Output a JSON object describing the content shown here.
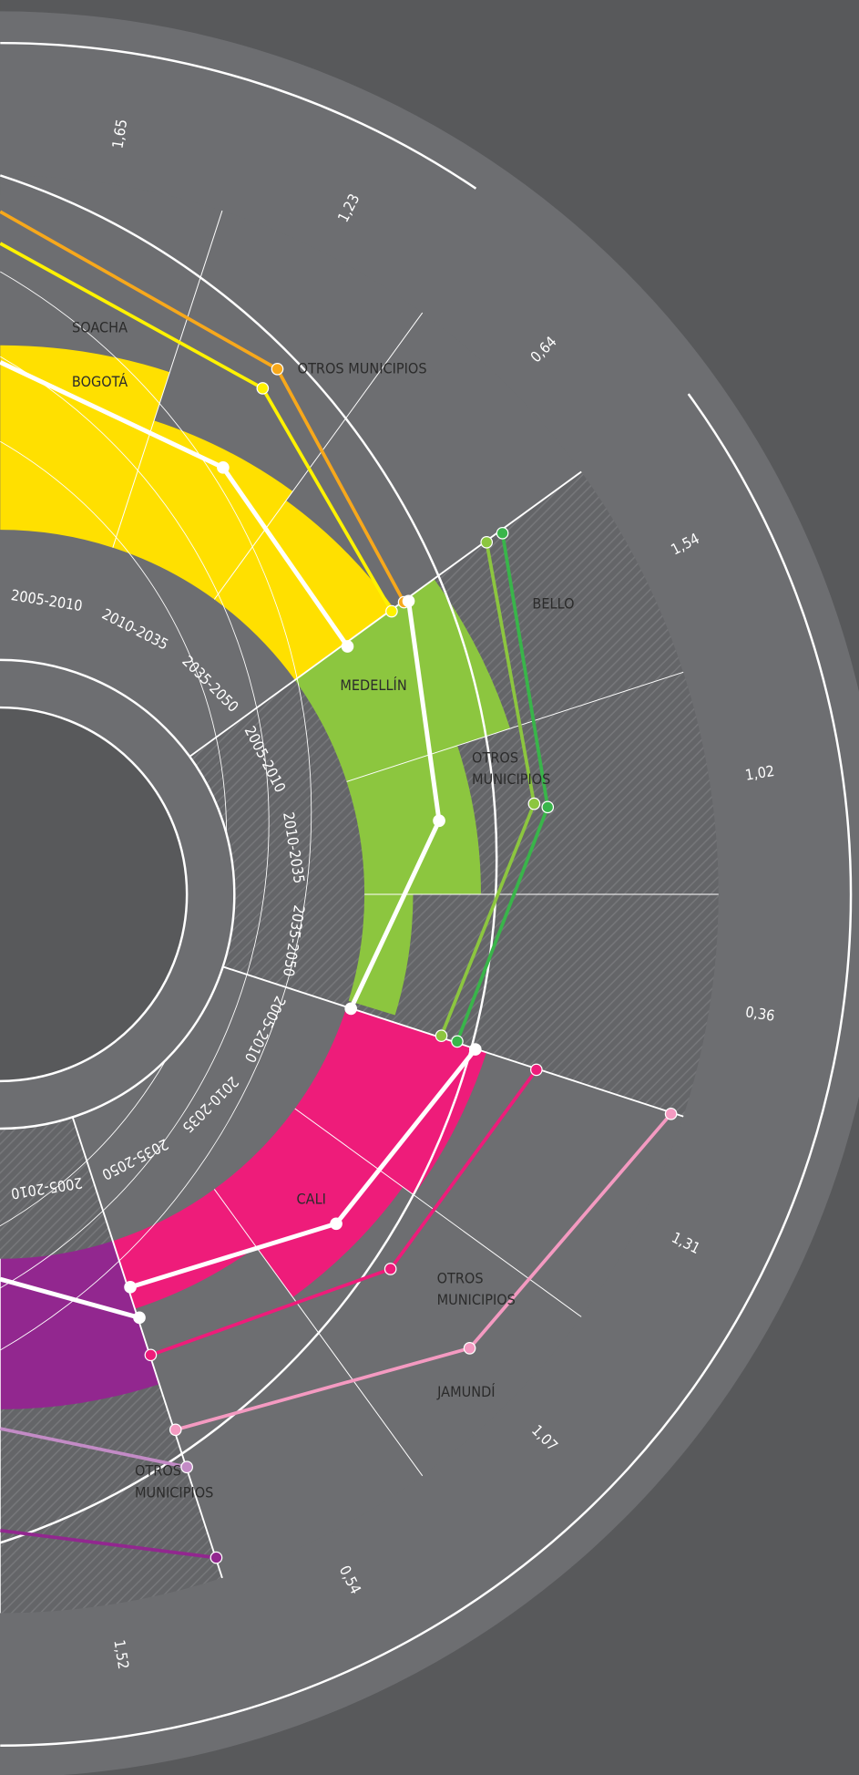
{
  "rate_labels": [
    "1,65",
    "1,23",
    "0,64",
    "1,54",
    "1,02",
    "0,36",
    "1,31",
    "1,07",
    "0,54",
    "1,52"
  ],
  "period_labels": [
    "2005-2010",
    "2010-2035",
    "2035-2050",
    "2005-2010",
    "2010-2035",
    "2035-2050",
    "2005-2010",
    "2010-2035",
    "2035-2050",
    "2005-2010"
  ],
  "place_labels": [
    [
      "SOACHA"
    ],
    [
      "BOGOTÁ"
    ],
    [
      "OTROS MUNICIPIOS"
    ],
    [
      "BELLO"
    ],
    [
      "MEDELLÍN"
    ],
    [
      "OTROS",
      "MUNICIPIOS"
    ],
    [
      "CALI"
    ],
    [
      "OTROS",
      "MUNICIPIOS"
    ],
    [
      "JAMUNDÍ"
    ],
    [
      "OTROS",
      "MUNICIPIOS"
    ]
  ]
}
